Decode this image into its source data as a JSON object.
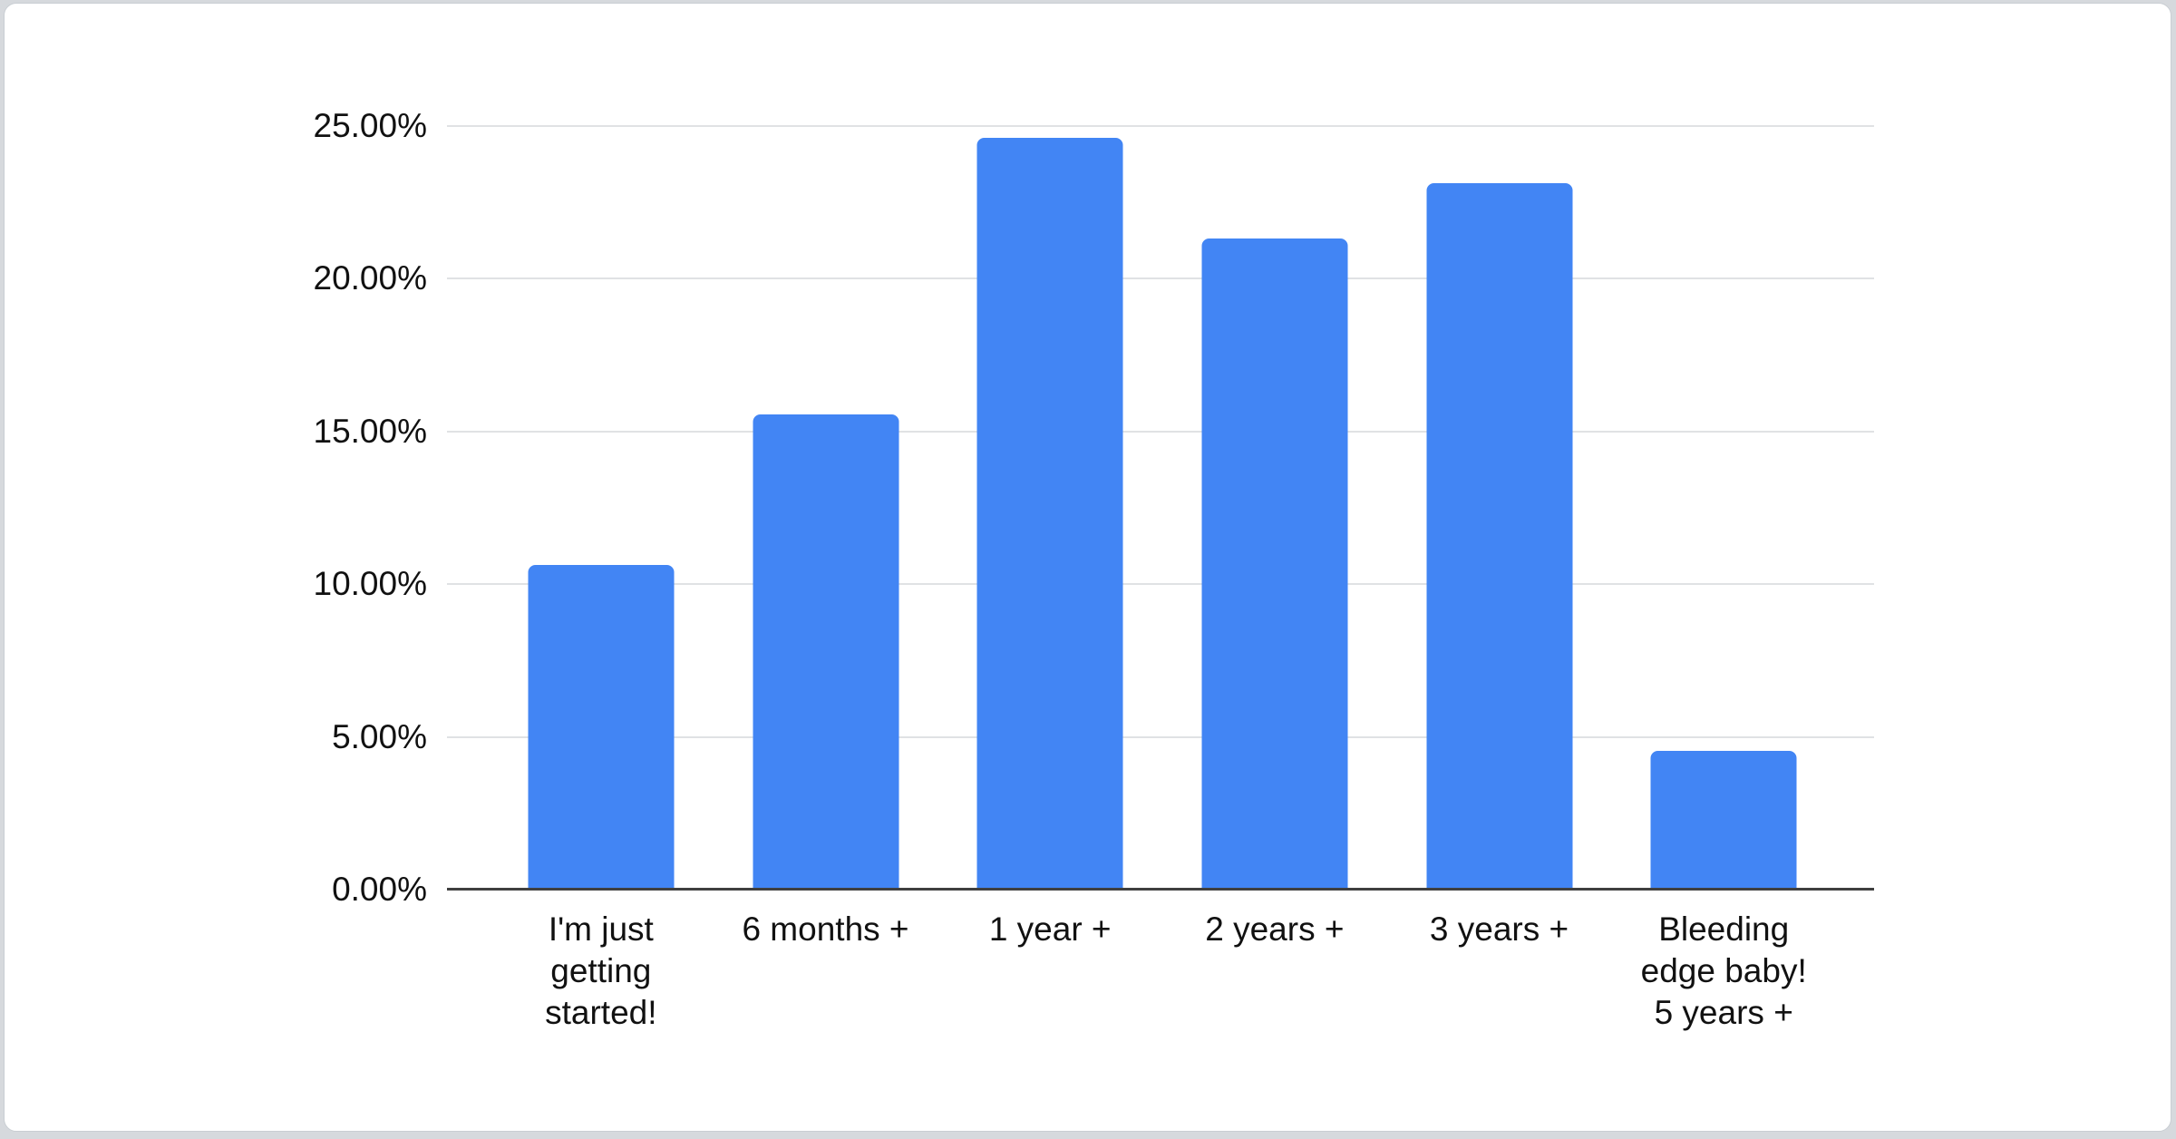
{
  "page": {
    "background_color": "#d6d9dd",
    "card_background_color": "#ffffff",
    "card_border_color": "#c9ced3"
  },
  "chart_data": {
    "type": "bar",
    "title": "",
    "categories": [
      "I'm just getting started!",
      "6 months +",
      "1 year +",
      "2 years +",
      "3 years +",
      "Bleeding edge baby! 5 years +"
    ],
    "xtick_labels": [
      "I'm just\ngetting\nstarted!",
      "6 months +",
      "1 year +",
      "2 years +",
      "3 years +",
      "Bleeding\nedge baby!\n5 years +"
    ],
    "values": [
      10.63,
      15.57,
      24.62,
      21.33,
      23.14,
      4.53
    ],
    "value_unit": "%",
    "ylim": [
      0,
      25
    ],
    "yticks": [
      {
        "value": 0,
        "label": "0.00%"
      },
      {
        "value": 5,
        "label": "5.00%"
      },
      {
        "value": 10,
        "label": "10.00%"
      },
      {
        "value": 15,
        "label": "15.00%"
      },
      {
        "value": 20,
        "label": "20.00%"
      },
      {
        "value": 25,
        "label": "25.00%"
      }
    ],
    "grid": true,
    "legend": "none",
    "bar_color": "#4285f4",
    "gridline_color": "#e0e2e4",
    "axis_line_color": "#3f3f3f",
    "label_color": "#111111"
  }
}
